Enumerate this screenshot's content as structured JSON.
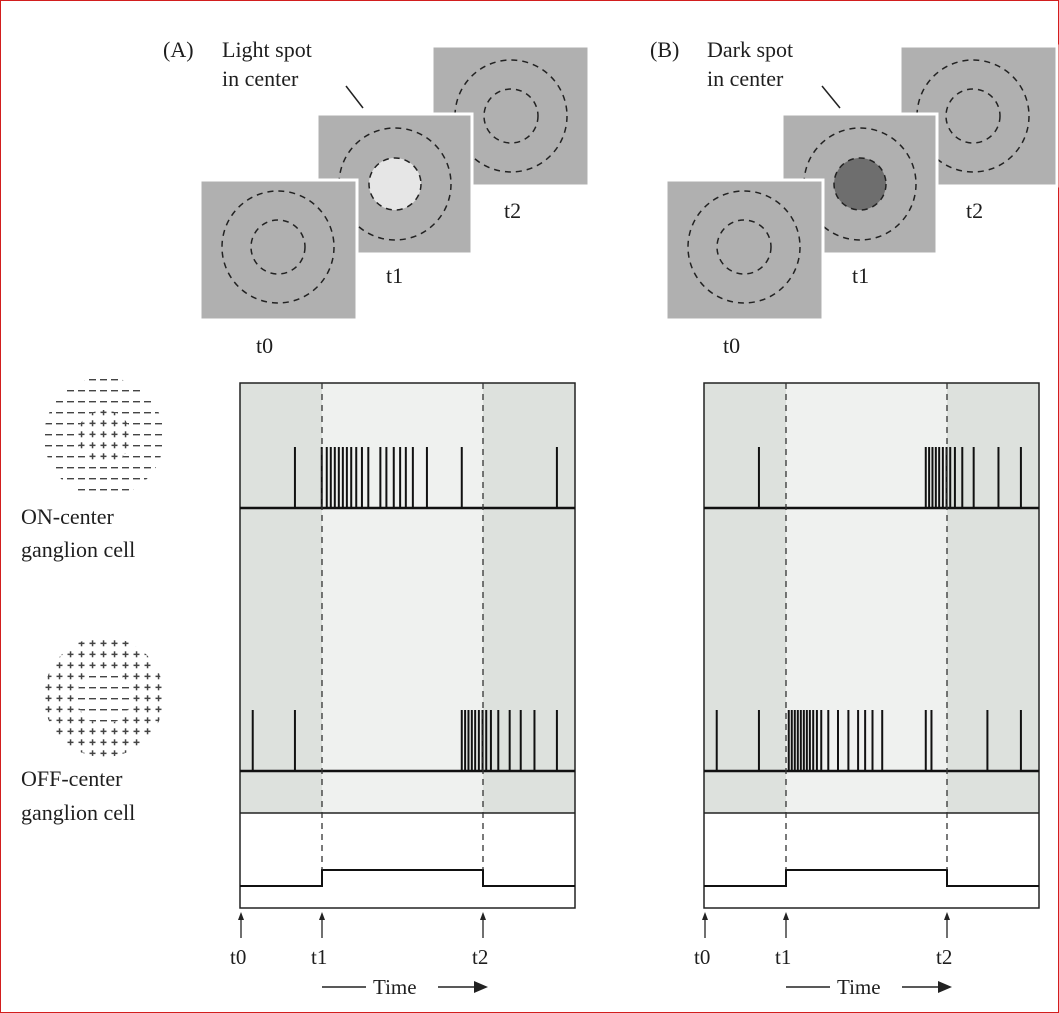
{
  "panel_a": {
    "tag": "(A)",
    "caption_line1": "Light spot",
    "caption_line2": "in center",
    "frame_t0": "t0",
    "frame_t1": "t1",
    "frame_t2": "t2",
    "spot_color": "#e6e6e6",
    "on_spikes": [
      0.164,
      0.244,
      0.259,
      0.271,
      0.283,
      0.295,
      0.307,
      0.319,
      0.332,
      0.347,
      0.364,
      0.383,
      0.419,
      0.437,
      0.459,
      0.478,
      0.495,
      0.516,
      0.558,
      0.662,
      0.946
    ],
    "off_spikes": [
      0.038,
      0.164,
      0.662,
      0.672,
      0.682,
      0.692,
      0.702,
      0.713,
      0.724,
      0.735,
      0.749,
      0.771,
      0.805,
      0.838,
      0.879,
      0.946
    ]
  },
  "panel_b": {
    "tag": "(B)",
    "caption_line1": "Dark spot",
    "caption_line2": "in center",
    "frame_t0": "t0",
    "frame_t1": "t1",
    "frame_t2": "t2",
    "spot_color": "#6e6e6e",
    "on_spikes": [
      0.164,
      0.662,
      0.672,
      0.682,
      0.692,
      0.702,
      0.713,
      0.724,
      0.735,
      0.749,
      0.771,
      0.805,
      0.879,
      0.946
    ],
    "off_spikes": [
      0.038,
      0.164,
      0.253,
      0.262,
      0.271,
      0.28,
      0.289,
      0.298,
      0.307,
      0.316,
      0.326,
      0.337,
      0.35,
      0.371,
      0.4,
      0.431,
      0.46,
      0.481,
      0.503,
      0.532,
      0.662,
      0.679,
      0.846,
      0.946
    ]
  },
  "cells": {
    "on_line1": "ON-center",
    "on_line2": "ganglion cell",
    "off_line1": "OFF-center",
    "off_line2": "ganglion cell"
  },
  "time_axis": {
    "t0": "t0",
    "t1": "t1",
    "t2": "t2",
    "label": "Time"
  },
  "colors": {
    "frame_border": "#d21e1e",
    "dark_bg": "#dde1dd",
    "light_bg": "#eff1ef",
    "stim_frame": "#b0b0b0"
  }
}
